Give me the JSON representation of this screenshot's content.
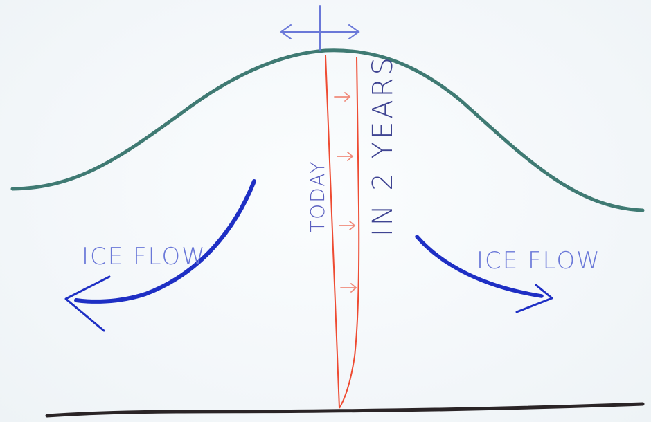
{
  "labels": {
    "today": "TODAY",
    "in_two_years": "IN 2 YEARS",
    "ice_flow_left": "ICE FLOW",
    "ice_flow_right": "ICE FLOW"
  },
  "colors": {
    "background": "#f4f8fb",
    "ice_surface": "#3f7a73",
    "bedrock": "#2a2426",
    "marker_lines": "#ee4b32",
    "marker_arrows": "#f08a7a",
    "label_ink": "#5a5fc0",
    "flow_arrows": "#1e2fc4",
    "divide_arrow": "#6a78d8"
  },
  "icons": {
    "divide_arrow": "double-headed-arrow-icon",
    "flow_left": "curved-arrow-left-icon",
    "flow_right": "curved-arrow-right-icon",
    "displacement": "small-right-arrow-icon"
  }
}
